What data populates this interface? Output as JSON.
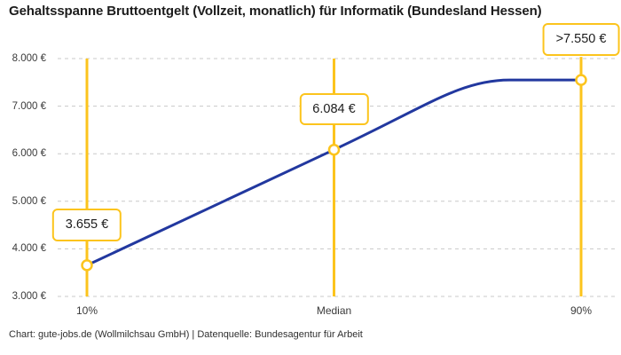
{
  "colors": {
    "accent_yellow": "#fcc41d",
    "line_blue": "#22389f",
    "grid_gray": "#c9c9c9",
    "text_dark": "#1c1c1c",
    "text_muted": "#3a3a3a"
  },
  "chart_data": {
    "type": "line",
    "title": "Gehaltsspanne Bruttoentgelt (Vollzeit, monatlich) für Informatik (Bundesland Hessen)",
    "attribution": "Chart: gute-jobs.de (Wollmilchsau GmbH) | Datenquelle: Bundesagentur für Arbeit",
    "categories": [
      "10%",
      "Median",
      "90%"
    ],
    "values": [
      3655,
      6084,
      7550
    ],
    "point_labels": [
      "3.655 €",
      "6.084 €",
      ">7.550 €"
    ],
    "ylim": [
      3000,
      8000
    ],
    "yticks": [
      3000,
      4000,
      5000,
      6000,
      7000,
      8000
    ],
    "ytick_labels": [
      "3.000 €",
      "4.000 €",
      "5.000 €",
      "6.000 €",
      "7.000 €",
      "8.000 €"
    ],
    "xlabel": "",
    "ylabel": "",
    "grid": "horizontal-dashed",
    "legend": "none",
    "notes": "vertical accent marker line at each percentile, open circle markers, curve flattens toward 90th percentile"
  }
}
